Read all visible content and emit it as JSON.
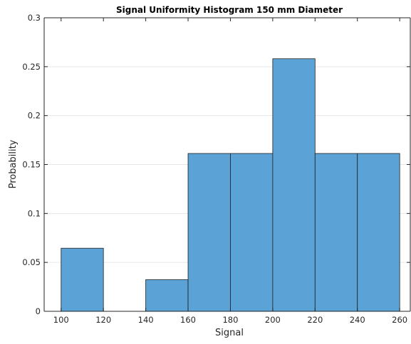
{
  "chart_data": {
    "type": "bar",
    "subtype": "histogram",
    "title": "Signal Uniformity Histogram 150 mm Diameter",
    "xlabel": "Signal",
    "ylabel": "Probability",
    "xlim": [
      92,
      265
    ],
    "ylim": [
      0,
      0.3
    ],
    "xticks": [
      "100",
      "120",
      "140",
      "160",
      "180",
      "200",
      "220",
      "240",
      "260"
    ],
    "yticks": [
      "0",
      "0.05",
      "0.1",
      "0.15",
      "0.2",
      "0.25",
      "0.3"
    ],
    "bin_edges": [
      100,
      120,
      140,
      160,
      180,
      200,
      220,
      240,
      260
    ],
    "values": [
      0.0645,
      0,
      0.0323,
      0.1613,
      0.1613,
      0.2581,
      0.1613,
      0.1613
    ],
    "grid": true,
    "colors": {
      "bar_fill": "#5ba3d6",
      "bar_edge": "#1f1f1f",
      "axes": "#262626",
      "grid": "#e6e6e6"
    }
  }
}
